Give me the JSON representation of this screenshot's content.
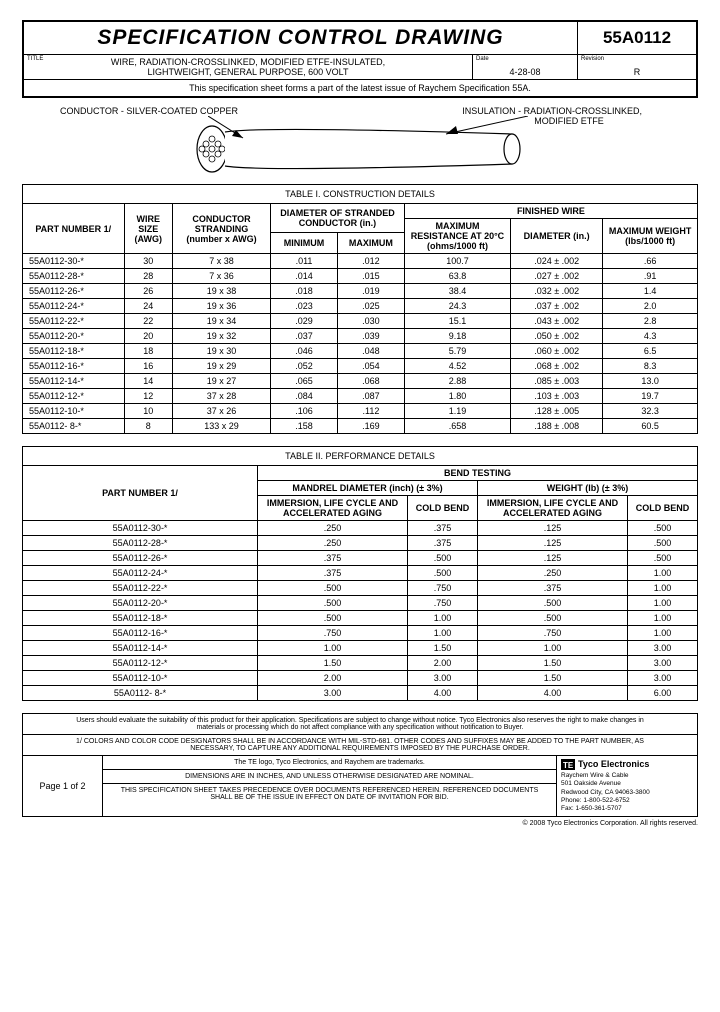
{
  "header": {
    "main_title": "SPECIFICATION CONTROL DRAWING",
    "part_code": "55A0112",
    "title_lbl": "TITLE",
    "title_line1": "WIRE, RADIATION-CROSSLINKED, MODIFIED ETFE-INSULATED,",
    "title_line2": "LIGHTWEIGHT, GENERAL PURPOSE,  600 VOLT",
    "date_lbl": "Date",
    "date": "4-28-08",
    "rev_lbl": "Revision",
    "rev": "R",
    "note": "This specification sheet forms a part of the latest issue of Raychem Specification 55A."
  },
  "diagram": {
    "left_label": "CONDUCTOR -  SILVER-COATED COPPER",
    "right_label_l1": "INSULATION -   RADIATION-CROSSLINKED,",
    "right_label_l2": "MODIFIED ETFE"
  },
  "table1": {
    "title": "TABLE I. CONSTRUCTION DETAILS",
    "h_part": "PART NUMBER 1/",
    "h_wire": "WIRE SIZE (AWG)",
    "h_strand": "CONDUCTOR STRANDING (number x AWG)",
    "h_diam_group": "DIAMETER OF STRANDED CONDUCTOR (in.)",
    "h_min": "MINIMUM",
    "h_max": "MAXIMUM",
    "h_fin": "FINISHED WIRE",
    "h_res": "MAXIMUM RESISTANCE AT 20°C (ohms/1000 ft)",
    "h_diam": "DIAMETER (in.)",
    "h_wt": "MAXIMUM WEIGHT (lbs/1000 ft)",
    "rows": [
      {
        "pn": "55A0112-30-*",
        "awg": "30",
        "str": "7 x 38",
        "mn": ".011",
        "mx": ".012",
        "res": "100.7",
        "dia": ".024 ± .002",
        "wt": ".66"
      },
      {
        "pn": "55A0112-28-*",
        "awg": "28",
        "str": "7 x 36",
        "mn": ".014",
        "mx": ".015",
        "res": "63.8",
        "dia": ".027 ± .002",
        "wt": ".91"
      },
      {
        "pn": "55A0112-26-*",
        "awg": "26",
        "str": "19 x 38",
        "mn": ".018",
        "mx": ".019",
        "res": "38.4",
        "dia": ".032 ± .002",
        "wt": "1.4"
      },
      {
        "pn": "55A0112-24-*",
        "awg": "24",
        "str": "19 x 36",
        "mn": ".023",
        "mx": ".025",
        "res": "24.3",
        "dia": ".037 ± .002",
        "wt": "2.0"
      },
      {
        "pn": "55A0112-22-*",
        "awg": "22",
        "str": "19 x 34",
        "mn": ".029",
        "mx": ".030",
        "res": "15.1",
        "dia": ".043 ± .002",
        "wt": "2.8"
      },
      {
        "pn": "55A0112-20-*",
        "awg": "20",
        "str": "19 x 32",
        "mn": ".037",
        "mx": ".039",
        "res": "9.18",
        "dia": ".050 ± .002",
        "wt": "4.3"
      },
      {
        "pn": "55A0112-18-*",
        "awg": "18",
        "str": "19 x 30",
        "mn": ".046",
        "mx": ".048",
        "res": "5.79",
        "dia": ".060 ± .002",
        "wt": "6.5"
      },
      {
        "pn": "55A0112-16-*",
        "awg": "16",
        "str": "19 x 29",
        "mn": ".052",
        "mx": ".054",
        "res": "4.52",
        "dia": ".068 ± .002",
        "wt": "8.3"
      },
      {
        "pn": "55A0112-14-*",
        "awg": "14",
        "str": "19 x 27",
        "mn": ".065",
        "mx": ".068",
        "res": "2.88",
        "dia": ".085 ± .003",
        "wt": "13.0"
      },
      {
        "pn": "55A0112-12-*",
        "awg": "12",
        "str": "37 x 28",
        "mn": ".084",
        "mx": ".087",
        "res": "1.80",
        "dia": ".103 ± .003",
        "wt": "19.7"
      },
      {
        "pn": "55A0112-10-*",
        "awg": "10",
        "str": "37 x 26",
        "mn": ".106",
        "mx": ".112",
        "res": "1.19",
        "dia": ".128 ± .005",
        "wt": "32.3"
      },
      {
        "pn": "55A0112-  8-*",
        "awg": "8",
        "str": "133  x 29",
        "mn": ".158",
        "mx": ".169",
        "res": ".658",
        "dia": ".188 ± .008",
        "wt": "60.5"
      }
    ]
  },
  "table2": {
    "title": "TABLE II. PERFORMANCE DETAILS",
    "h_bend": "BEND TESTING",
    "h_part": "PART NUMBER 1/",
    "h_mandrel": "MANDREL DIAMETER (inch) (± 3%)",
    "h_weight": "WEIGHT (lb) (± 3%)",
    "h_imm": "IMMERSION, LIFE CYCLE AND ACCELERATED AGING",
    "h_cold": "COLD BEND",
    "rows": [
      {
        "pn": "55A0112-30-*",
        "m1": ".250",
        "m2": ".375",
        "w1": ".125",
        "w2": ".500"
      },
      {
        "pn": "55A0112-28-*",
        "m1": ".250",
        "m2": ".375",
        "w1": ".125",
        "w2": ".500"
      },
      {
        "pn": "55A0112-26-*",
        "m1": ".375",
        "m2": ".500",
        "w1": ".125",
        "w2": ".500"
      },
      {
        "pn": "55A0112-24-*",
        "m1": ".375",
        "m2": ".500",
        "w1": ".250",
        "w2": "1.00"
      },
      {
        "pn": "55A0112-22-*",
        "m1": ".500",
        "m2": ".750",
        "w1": ".375",
        "w2": "1.00"
      },
      {
        "pn": "55A0112-20-*",
        "m1": ".500",
        "m2": ".750",
        "w1": ".500",
        "w2": "1.00"
      },
      {
        "pn": "55A0112-18-*",
        "m1": ".500",
        "m2": "1.00",
        "w1": ".500",
        "w2": "1.00"
      },
      {
        "pn": "55A0112-16-*",
        "m1": ".750",
        "m2": "1.00",
        "w1": ".750",
        "w2": "1.00"
      },
      {
        "pn": "55A0112-14-*",
        "m1": "1.00",
        "m2": "1.50",
        "w1": "1.00",
        "w2": "3.00"
      },
      {
        "pn": "55A0112-12-*",
        "m1": "1.50",
        "m2": "2.00",
        "w1": "1.50",
        "w2": "3.00"
      },
      {
        "pn": "55A0112-10-*",
        "m1": "2.00",
        "m2": "3.00",
        "w1": "1.50",
        "w2": "3.00"
      },
      {
        "pn": "55A0112-  8-*",
        "m1": "3.00",
        "m2": "4.00",
        "w1": "4.00",
        "w2": "6.00"
      }
    ]
  },
  "footer": {
    "note1": "Users should evaluate the suitability of this product for their application. Specifications are subject to change without notice. Tyco Electronics also reserves the right to make changes in materials or processing which do not affect compliance with any specification without notification to Buyer.",
    "note2": "1/ COLORS AND COLOR CODE DESIGNATORS SHALL BE IN ACCORDANCE WITH MIL-STD-681. OTHER CODES AND SUFFIXES MAY BE ADDED TO THE PART NUMBER, AS NECESSARY, TO CAPTURE ANY ADDITIONAL REQUIREMENTS IMPOSED BY THE PURCHASE ORDER.",
    "note3": "The TE logo, Tyco Electronics, and Raychem are trademarks.",
    "note4": "DIMENSIONS ARE IN INCHES, AND UNLESS OTHERWISE DESIGNATED ARE NOMINAL.",
    "note5": "THIS SPECIFICATION SHEET TAKES PRECEDENCE OVER DOCUMENTS REFERENCED HEREIN. REFERENCED DOCUMENTS SHALL BE OF THE ISSUE IN EFFECT ON DATE OF INVITATION FOR BID.",
    "page": "Page 1 of 2",
    "company": "Tyco Electronics",
    "addr1": "Raychem Wire & Cable",
    "addr2": "501 Oakside Avenue",
    "addr3": "Redwood City, CA 94063-3800",
    "addr4": "Phone: 1-800-522-6752",
    "addr5": "Fax: 1-650-361-5707",
    "copyright": "© 2008 Tyco Electronics Corporation. All rights reserved."
  },
  "colors": {
    "border": "#000000",
    "bg": "#ffffff"
  }
}
